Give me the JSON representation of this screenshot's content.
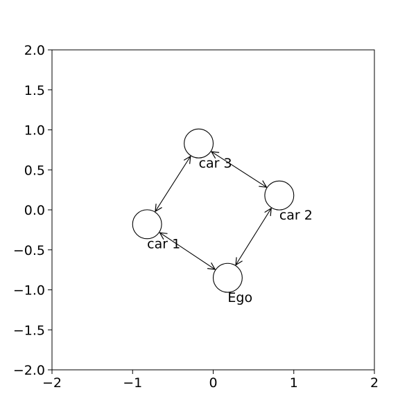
{
  "chart_data": {
    "type": "scatter",
    "title": "",
    "xlabel": "",
    "ylabel": "",
    "xlim": [
      -2,
      2
    ],
    "ylim": [
      -2,
      2
    ],
    "grid": false,
    "x_ticks": [
      {
        "value": -2,
        "label": "−2"
      },
      {
        "value": -1,
        "label": "−1"
      },
      {
        "value": 0,
        "label": "0"
      },
      {
        "value": 1,
        "label": "1"
      },
      {
        "value": 2,
        "label": "2"
      }
    ],
    "y_ticks": [
      {
        "value": -2,
        "label": "−2.0"
      },
      {
        "value": -1.5,
        "label": "−1.5"
      },
      {
        "value": -1,
        "label": "−1.0"
      },
      {
        "value": -0.5,
        "label": "−0.5"
      },
      {
        "value": 0,
        "label": "0.0"
      },
      {
        "value": 0.5,
        "label": "0.5"
      },
      {
        "value": 1,
        "label": "1.0"
      },
      {
        "value": 1.5,
        "label": "1.5"
      },
      {
        "value": 2,
        "label": "2.0"
      }
    ],
    "nodes": [
      {
        "id": "ego",
        "label": "Ego",
        "x": 0.18,
        "y": -0.85
      },
      {
        "id": "car1",
        "label": "car 1",
        "x": -0.82,
        "y": -0.18
      },
      {
        "id": "car2",
        "label": "car 2",
        "x": 0.82,
        "y": 0.18
      },
      {
        "id": "car3",
        "label": "car 3",
        "x": -0.18,
        "y": 0.83
      }
    ],
    "edges": [
      {
        "from": "car1",
        "to": "ego",
        "bidirectional": true
      },
      {
        "from": "ego",
        "to": "car2",
        "bidirectional": true
      },
      {
        "from": "car2",
        "to": "car3",
        "bidirectional": true
      },
      {
        "from": "car3",
        "to": "car1",
        "bidirectional": true
      }
    ],
    "node_radius": 0.18,
    "colors": {
      "stroke": "#000000",
      "background": "#ffffff"
    }
  }
}
